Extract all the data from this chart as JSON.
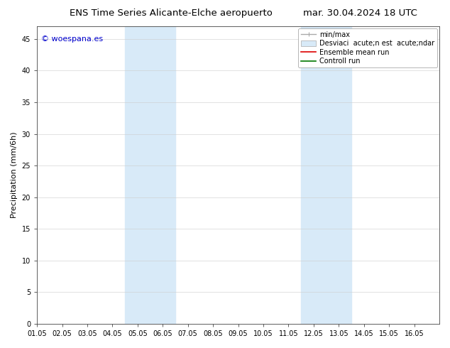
{
  "title_left": "ENS Time Series Alicante-Elche aeropuerto",
  "title_right": "mar. 30.04.2024 18 UTC",
  "ylabel": "Precipitation (mm/6h)",
  "xlim": [
    0,
    16
  ],
  "ylim": [
    0,
    47
  ],
  "yticks": [
    0,
    5,
    10,
    15,
    20,
    25,
    30,
    35,
    40,
    45
  ],
  "xtick_labels": [
    "01.05",
    "02.05",
    "03.05",
    "04.05",
    "05.05",
    "06.05",
    "07.05",
    "08.05",
    "09.05",
    "10.05",
    "11.05",
    "12.05",
    "13.05",
    "14.05",
    "15.05",
    "16.05"
  ],
  "shaded_regions": [
    {
      "xmin": 3.5,
      "xmax": 5.5,
      "color": "#d8eaf8"
    },
    {
      "xmin": 10.5,
      "xmax": 12.5,
      "color": "#d8eaf8"
    }
  ],
  "watermark": "© woespana.es",
  "watermark_color": "#0000cc",
  "background_color": "#ffffff",
  "legend_label_minmax": "min/max",
  "legend_label_std": "Desviaci  acute;n est  acute;ndar",
  "legend_label_ens": "Ensemble mean run",
  "legend_label_ctrl": "Controll run",
  "color_minmax": "#aaaaaa",
  "color_std": "#d8eaf8",
  "color_ens": "#dd0000",
  "color_ctrl": "#007700",
  "title_fontsize": 9.5,
  "ylabel_fontsize": 8,
  "tick_fontsize": 7,
  "legend_fontsize": 7,
  "watermark_fontsize": 8
}
